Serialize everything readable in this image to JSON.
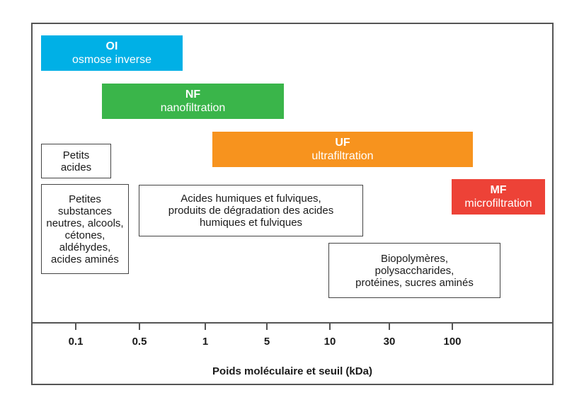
{
  "processes": [
    {
      "abbr": "OI",
      "name": "osmose inverse",
      "color": "#00B0E6"
    },
    {
      "abbr": "NF",
      "name": "nanofiltration",
      "color": "#3AB54A"
    },
    {
      "abbr": "UF",
      "name": "ultrafiltration",
      "color": "#F7931E"
    },
    {
      "abbr": "MF",
      "name": "microfiltration",
      "color": "#ED4237"
    }
  ],
  "substances": [
    {
      "label": "Petits\nacides"
    },
    {
      "label": "Petites\nsubstances\nneutres, alcools,\ncétones,\naldéhydes,\nacides aminés"
    },
    {
      "label": "Acides humiques et fulviques,\nproduits de dégradation des acides\nhumiques et fulviques"
    },
    {
      "label": "Biopolymères,\npolysaccharides,\nprotéines, sucres aminés"
    }
  ],
  "axis": {
    "title": "Poids moléculaire et seuil (kDa)",
    "ticks": [
      "0.1",
      "0.5",
      "1",
      "5",
      "10",
      "30",
      "100"
    ]
  }
}
